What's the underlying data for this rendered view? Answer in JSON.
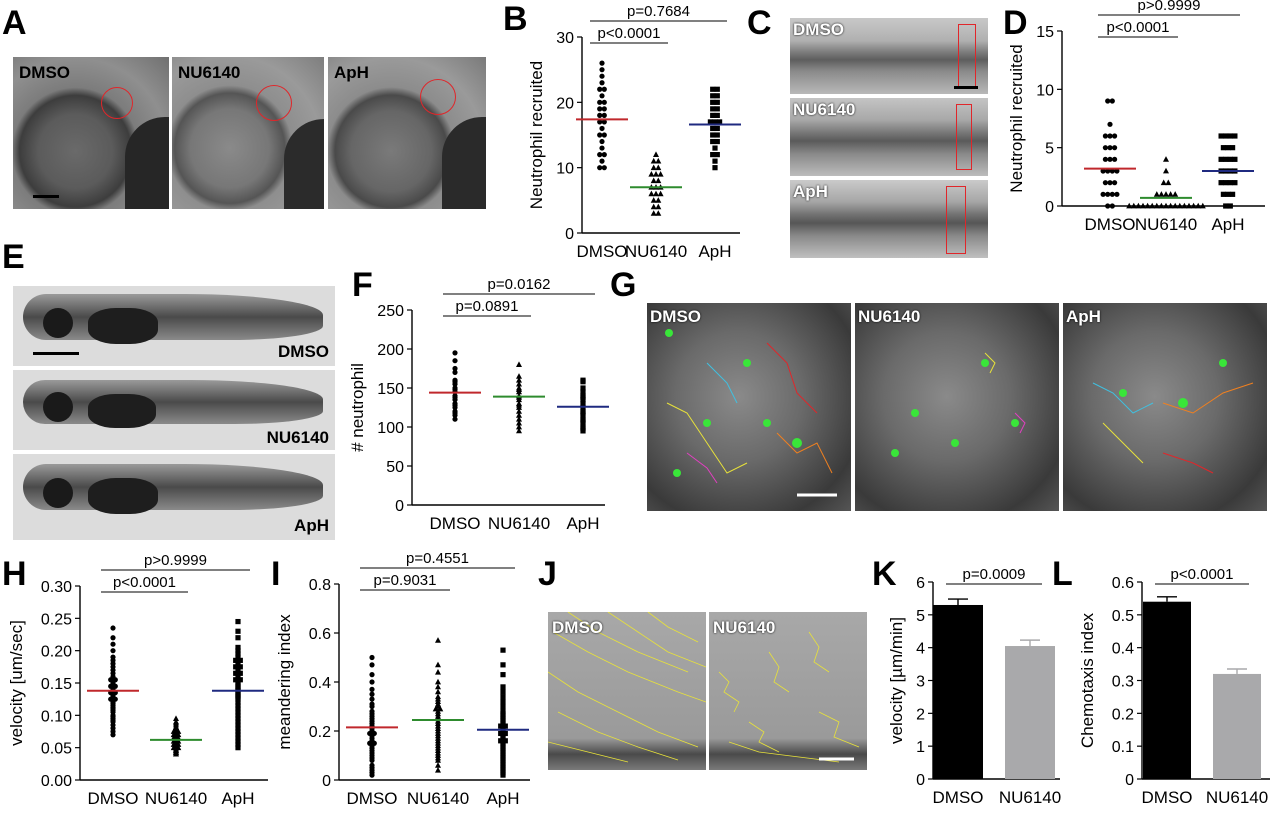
{
  "panel_letters": [
    "A",
    "B",
    "C",
    "D",
    "E",
    "F",
    "G",
    "H",
    "I",
    "J",
    "K",
    "L"
  ],
  "colors": {
    "dmso": "#c0282c",
    "nu6140": "#2e8b2e",
    "aph": "#1f2a80",
    "bar_dmso": "#000000",
    "bar_nu6140": "#a9a9ab",
    "track_yellow": "#e8e23a",
    "roi_red": "#e0262a"
  },
  "panel_a": {
    "labels": [
      "DMSO",
      "NU6140",
      "ApH"
    ]
  },
  "panel_c": {
    "labels": [
      "DMSO",
      "NU6140",
      "ApH"
    ]
  },
  "panel_e": {
    "labels": [
      "DMSO",
      "NU6140",
      "ApH"
    ]
  },
  "panel_g": {
    "labels": [
      "DMSO",
      "NU6140",
      "ApH"
    ]
  },
  "panel_j": {
    "labels": [
      "DMSO",
      "NU6140"
    ]
  },
  "chart_data": [
    {
      "panel": "B",
      "type": "scatter",
      "ylabel": "Neutrophil recruited",
      "ylim": [
        0,
        30
      ],
      "yticks": [
        0,
        10,
        20,
        30
      ],
      "ytick_labels": [
        "0",
        "10",
        "20",
        "30"
      ],
      "categories": [
        "DMSO",
        "NU6140",
        "ApH"
      ],
      "markers": [
        "circle",
        "triangle",
        "square"
      ],
      "means": [
        17.4,
        7.0,
        16.6
      ],
      "series": [
        {
          "values": [
            26,
            25,
            24,
            23,
            22,
            22,
            21,
            20,
            20,
            19,
            19,
            18,
            18,
            17,
            17,
            16,
            15,
            15,
            14,
            13,
            12,
            12,
            11,
            10,
            10
          ]
        },
        {
          "values": [
            12,
            11,
            11,
            10,
            10,
            9,
            9,
            9,
            8,
            8,
            7,
            7,
            7,
            6,
            6,
            6,
            5,
            5,
            4,
            4,
            3,
            3
          ]
        },
        {
          "values": [
            22,
            22,
            21,
            21,
            20,
            20,
            19,
            19,
            18,
            18,
            17,
            17,
            17,
            16,
            16,
            15,
            15,
            14,
            14,
            13,
            12,
            12,
            11,
            10
          ]
        }
      ],
      "comparisons": [
        {
          "from": 0,
          "to": 1,
          "label": "p<0.0001"
        },
        {
          "from": 0,
          "to": 2,
          "label": "p=0.7684"
        }
      ]
    },
    {
      "panel": "D",
      "type": "scatter",
      "ylabel": "Neutrophil recruited",
      "ylim": [
        0,
        15
      ],
      "yticks": [
        0,
        5,
        10,
        15
      ],
      "ytick_labels": [
        "0",
        "5",
        "10",
        "15"
      ],
      "categories": [
        "DMSO",
        "NU6140",
        "ApH"
      ],
      "markers": [
        "circle",
        "triangle",
        "square"
      ],
      "means": [
        3.2,
        0.7,
        3.0
      ],
      "series": [
        {
          "values": [
            9,
            9,
            7,
            6,
            6,
            6,
            5,
            5,
            5,
            4,
            4,
            4,
            3,
            3,
            3,
            3,
            2,
            2,
            2,
            1,
            1,
            1,
            1,
            0,
            0
          ]
        },
        {
          "values": [
            4,
            3,
            2,
            2,
            1,
            1,
            1,
            1,
            1,
            0,
            0,
            0,
            0,
            0,
            0,
            0,
            0,
            0,
            0,
            0,
            0,
            0,
            0,
            0,
            0,
            0
          ]
        },
        {
          "values": [
            6,
            6,
            6,
            6,
            5,
            5,
            5,
            4,
            4,
            4,
            4,
            3,
            3,
            3,
            3,
            2,
            2,
            2,
            2,
            1,
            1,
            1,
            0,
            0
          ]
        }
      ],
      "comparisons": [
        {
          "from": 0,
          "to": 1,
          "label": "p<0.0001"
        },
        {
          "from": 0,
          "to": 2,
          "label": "p>0.9999"
        }
      ]
    },
    {
      "panel": "F",
      "type": "scatter",
      "ylabel": "# neutrophil",
      "ylim": [
        0,
        250
      ],
      "yticks": [
        0,
        50,
        100,
        150,
        200,
        250
      ],
      "ytick_labels": [
        "0",
        "50",
        "100",
        "150",
        "200",
        "250"
      ],
      "categories": [
        "DMSO",
        "NU6140",
        "ApH"
      ],
      "markers": [
        "circle",
        "triangle",
        "square"
      ],
      "means": [
        144,
        139,
        126
      ],
      "series": [
        {
          "values": [
            195,
            185,
            175,
            170,
            160,
            155,
            150,
            148,
            145,
            140,
            138,
            135,
            130,
            128,
            125,
            120,
            118,
            115,
            110,
            158
          ]
        },
        {
          "values": [
            180,
            165,
            160,
            155,
            150,
            148,
            145,
            140,
            138,
            135,
            130,
            128,
            125,
            120,
            115,
            110,
            105,
            100,
            95
          ]
        },
        {
          "values": [
            160,
            158,
            150,
            145,
            140,
            138,
            135,
            130,
            125,
            120,
            118,
            115,
            110,
            108,
            105,
            100,
            98,
            95
          ]
        }
      ],
      "comparisons": [
        {
          "from": 0,
          "to": 1,
          "label": "p=0.0891"
        },
        {
          "from": 0,
          "to": 2,
          "label": "p=0.0162"
        }
      ]
    },
    {
      "panel": "H",
      "type": "scatter",
      "ylabel": "velocity [um/sec]",
      "ylim": [
        0,
        0.3
      ],
      "yticks": [
        0,
        0.05,
        0.1,
        0.15,
        0.2,
        0.25,
        0.3
      ],
      "ytick_labels": [
        "0.00",
        "0.05",
        "0.10",
        "0.15",
        "0.20",
        "0.25",
        "0.30"
      ],
      "categories": [
        "DMSO",
        "NU6140",
        "ApH"
      ],
      "markers": [
        "circle",
        "triangle",
        "square"
      ],
      "means": [
        0.138,
        0.062,
        0.138
      ],
      "series": [
        {
          "values": [
            0.235,
            0.22,
            0.21,
            0.2,
            0.19,
            0.185,
            0.18,
            0.175,
            0.17,
            0.165,
            0.16,
            0.158,
            0.155,
            0.15,
            0.148,
            0.145,
            0.142,
            0.14,
            0.138,
            0.135,
            0.132,
            0.13,
            0.128,
            0.125,
            0.122,
            0.12,
            0.118,
            0.115,
            0.112,
            0.11,
            0.108,
            0.105,
            0.1,
            0.098,
            0.095,
            0.092,
            0.09,
            0.085,
            0.08,
            0.075,
            0.07,
            0.145,
            0.155,
            0.125,
            0.135
          ]
        },
        {
          "values": [
            0.095,
            0.09,
            0.088,
            0.085,
            0.082,
            0.08,
            0.078,
            0.075,
            0.072,
            0.07,
            0.068,
            0.066,
            0.065,
            0.064,
            0.063,
            0.062,
            0.061,
            0.06,
            0.059,
            0.058,
            0.057,
            0.056,
            0.055,
            0.054,
            0.053,
            0.052,
            0.051,
            0.05,
            0.048,
            0.046,
            0.045,
            0.043,
            0.042,
            0.04,
            0.075,
            0.07,
            0.065,
            0.06,
            0.055,
            0.05
          ]
        },
        {
          "values": [
            0.245,
            0.23,
            0.22,
            0.205,
            0.2,
            0.195,
            0.19,
            0.185,
            0.18,
            0.175,
            0.17,
            0.165,
            0.16,
            0.155,
            0.15,
            0.148,
            0.145,
            0.142,
            0.14,
            0.138,
            0.135,
            0.132,
            0.13,
            0.128,
            0.125,
            0.12,
            0.115,
            0.11,
            0.105,
            0.1,
            0.095,
            0.09,
            0.085,
            0.08,
            0.075,
            0.07,
            0.065,
            0.06,
            0.055,
            0.05,
            0.155,
            0.165,
            0.175,
            0.185
          ]
        }
      ],
      "comparisons": [
        {
          "from": 0,
          "to": 1,
          "label": "p<0.0001"
        },
        {
          "from": 0,
          "to": 2,
          "label": "p>0.9999"
        }
      ]
    },
    {
      "panel": "I",
      "type": "scatter",
      "ylabel": "meandering index",
      "ylim": [
        0,
        0.8
      ],
      "yticks": [
        0,
        0.2,
        0.4,
        0.6,
        0.8
      ],
      "ytick_labels": [
        "0",
        "0.2",
        "0.4",
        "0.6",
        "0.8"
      ],
      "categories": [
        "DMSO",
        "NU6140",
        "ApH"
      ],
      "markers": [
        "circle",
        "triangle",
        "square"
      ],
      "means": [
        0.215,
        0.245,
        0.205
      ],
      "series": [
        {
          "values": [
            0.5,
            0.47,
            0.43,
            0.4,
            0.37,
            0.35,
            0.33,
            0.31,
            0.3,
            0.28,
            0.27,
            0.25,
            0.24,
            0.22,
            0.21,
            0.2,
            0.19,
            0.18,
            0.17,
            0.16,
            0.15,
            0.14,
            0.13,
            0.12,
            0.11,
            0.1,
            0.09,
            0.08,
            0.06,
            0.05,
            0.04,
            0.03,
            0.02,
            0.26,
            0.23,
            0.19,
            0.15
          ]
        },
        {
          "values": [
            0.57,
            0.47,
            0.44,
            0.4,
            0.38,
            0.36,
            0.34,
            0.33,
            0.31,
            0.3,
            0.29,
            0.28,
            0.27,
            0.26,
            0.25,
            0.24,
            0.23,
            0.22,
            0.21,
            0.2,
            0.19,
            0.18,
            0.17,
            0.16,
            0.15,
            0.14,
            0.13,
            0.12,
            0.11,
            0.1,
            0.09,
            0.08,
            0.06,
            0.04,
            0.32,
            0.29
          ]
        },
        {
          "values": [
            0.53,
            0.47,
            0.43,
            0.38,
            0.36,
            0.34,
            0.32,
            0.3,
            0.28,
            0.27,
            0.26,
            0.25,
            0.24,
            0.23,
            0.22,
            0.21,
            0.2,
            0.19,
            0.18,
            0.17,
            0.16,
            0.15,
            0.14,
            0.13,
            0.12,
            0.11,
            0.1,
            0.09,
            0.08,
            0.07,
            0.06,
            0.05,
            0.04,
            0.03,
            0.02,
            0.22,
            0.19,
            0.16
          ]
        }
      ],
      "comparisons": [
        {
          "from": 0,
          "to": 1,
          "label": "p=0.9031"
        },
        {
          "from": 0,
          "to": 2,
          "label": "p=0.4551"
        }
      ]
    },
    {
      "panel": "K",
      "type": "bar",
      "ylabel": "velocity [µm/min]",
      "ylim": [
        0,
        6
      ],
      "yticks": [
        0,
        1,
        2,
        3,
        4,
        5,
        6
      ],
      "ytick_labels": [
        "0",
        "1",
        "2",
        "3",
        "4",
        "5",
        "6"
      ],
      "categories": [
        "DMSO",
        "NU6140"
      ],
      "values": [
        5.3,
        4.05
      ],
      "errors": [
        0.18,
        0.18
      ],
      "comparisons": [
        {
          "from": 0,
          "to": 1,
          "label": "p=0.0009"
        }
      ]
    },
    {
      "panel": "L",
      "type": "bar",
      "ylabel": "Chemotaxis index",
      "ylim": [
        0,
        0.6
      ],
      "yticks": [
        0,
        0.1,
        0.2,
        0.3,
        0.4,
        0.5,
        0.6
      ],
      "ytick_labels": [
        "0",
        "0.1",
        "0.2",
        "0.3",
        "0.4",
        "0.5",
        "0.6"
      ],
      "categories": [
        "DMSO",
        "NU6140"
      ],
      "values": [
        0.54,
        0.32
      ],
      "errors": [
        0.015,
        0.015
      ],
      "comparisons": [
        {
          "from": 0,
          "to": 1,
          "label": "p<0.0001"
        }
      ]
    }
  ]
}
